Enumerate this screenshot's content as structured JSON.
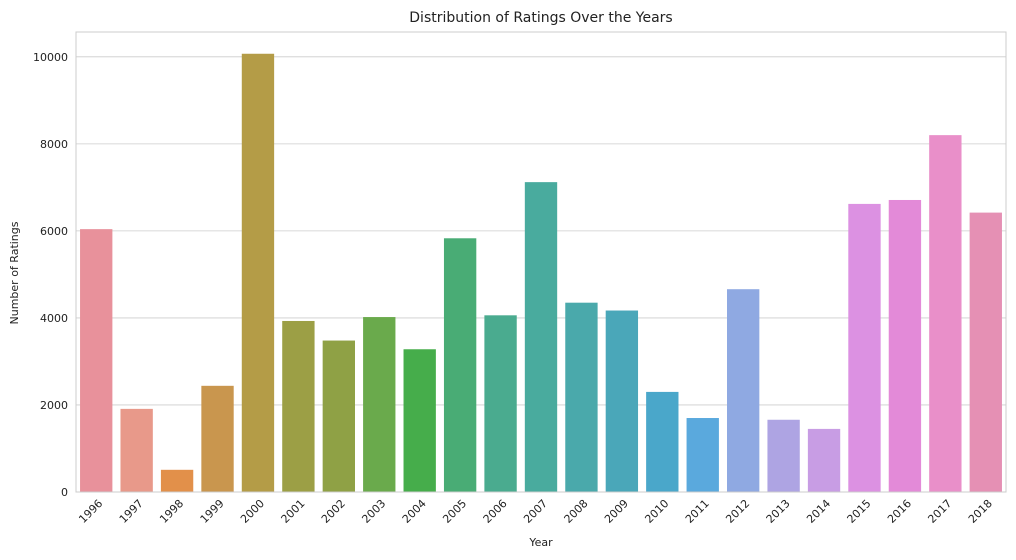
{
  "chart_data": {
    "type": "bar",
    "title": "Distribution of Ratings Over the Years",
    "xlabel": "Year",
    "ylabel": "Number of Ratings",
    "categories": [
      "1996",
      "1997",
      "1998",
      "1999",
      "2000",
      "2001",
      "2002",
      "2003",
      "2004",
      "2005",
      "2006",
      "2007",
      "2008",
      "2009",
      "2010",
      "2011",
      "2012",
      "2013",
      "2014",
      "2015",
      "2016",
      "2017",
      "2018"
    ],
    "values": [
      6040,
      1910,
      510,
      2440,
      10070,
      3930,
      3480,
      4020,
      3280,
      5830,
      4060,
      7120,
      4350,
      4170,
      2300,
      1700,
      4660,
      1660,
      1450,
      6620,
      6710,
      8200,
      6420
    ],
    "colors": [
      "#e8919b",
      "#e8998a",
      "#e2904a",
      "#c9964e",
      "#b49c47",
      "#9c9f45",
      "#8fa145",
      "#6aaa4c",
      "#46ad4b",
      "#49ac75",
      "#4aab8f",
      "#49ab9e",
      "#4aa9ab",
      "#4aa7b9",
      "#4aa7ca",
      "#5aa9dd",
      "#8fa9e2",
      "#aea4e3",
      "#c89de4",
      "#dc91e2",
      "#e38ad8",
      "#e98fc9",
      "#e590b4"
    ],
    "yticks": [
      0,
      2000,
      4000,
      6000,
      8000,
      10000
    ],
    "ylim": [
      0,
      10570
    ],
    "grid": "horizontal"
  }
}
